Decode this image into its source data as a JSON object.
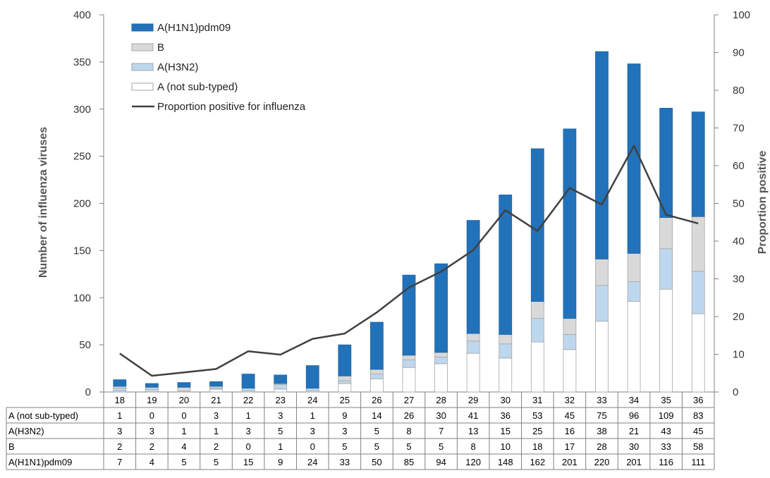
{
  "chart_data": {
    "type": "bar",
    "stacked": true,
    "categories": [
      "18",
      "19",
      "20",
      "21",
      "22",
      "23",
      "24",
      "25",
      "26",
      "27",
      "28",
      "29",
      "30",
      "31",
      "32",
      "33",
      "34",
      "35",
      "36"
    ],
    "series": [
      {
        "name": "A (not sub-typed)",
        "color": "#ffffff",
        "values": [
          1,
          0,
          0,
          3,
          1,
          3,
          1,
          9,
          14,
          26,
          30,
          41,
          36,
          53,
          45,
          75,
          96,
          109,
          83
        ]
      },
      {
        "name": "A(H3N2)",
        "color": "#bdd7ee",
        "values": [
          3,
          3,
          1,
          1,
          3,
          5,
          3,
          3,
          5,
          8,
          7,
          13,
          15,
          25,
          16,
          38,
          21,
          43,
          45
        ]
      },
      {
        "name": "B",
        "color": "#d9d9d9",
        "values": [
          2,
          2,
          4,
          2,
          0,
          1,
          0,
          5,
          5,
          5,
          5,
          8,
          10,
          18,
          17,
          28,
          30,
          33,
          58
        ]
      },
      {
        "name": "A(H1N1)pdm09",
        "color": "#2272b9",
        "values": [
          7,
          4,
          5,
          5,
          15,
          9,
          24,
          33,
          50,
          85,
          94,
          120,
          148,
          162,
          201,
          220,
          201,
          116,
          111
        ]
      }
    ],
    "line_series": {
      "name": "Proportion positive for influenza",
      "color": "#404040",
      "axis": "right",
      "values": [
        10.2,
        4.3,
        5.2,
        6.1,
        10.8,
        9.9,
        14.1,
        15.5,
        21.1,
        27.7,
        31.9,
        37.6,
        48.2,
        42.7,
        54.1,
        49.7,
        65.3,
        47.0,
        44.7
      ]
    },
    "ylabel": "Number of influenza viruses",
    "y2label": "Proportion positive",
    "ylim": [
      0,
      400
    ],
    "y2lim": [
      0,
      100
    ],
    "yticks": [
      "0",
      "50",
      "100",
      "150",
      "200",
      "250",
      "300",
      "350",
      "400"
    ],
    "y2ticks": [
      "0",
      "10",
      "20",
      "30",
      "40",
      "50",
      "60",
      "70",
      "80",
      "90",
      "100"
    ],
    "legend_order": [
      "A(H1N1)pdm09",
      "B",
      "A(H3N2)",
      "A (not sub-typed)",
      "Proportion positive for influenza"
    ],
    "legend_position": "top-left",
    "grid": false,
    "data_table": true,
    "table_row_order": [
      "A (not sub-typed)",
      "A(H3N2)",
      "B",
      "A(H1N1)pdm09"
    ]
  }
}
